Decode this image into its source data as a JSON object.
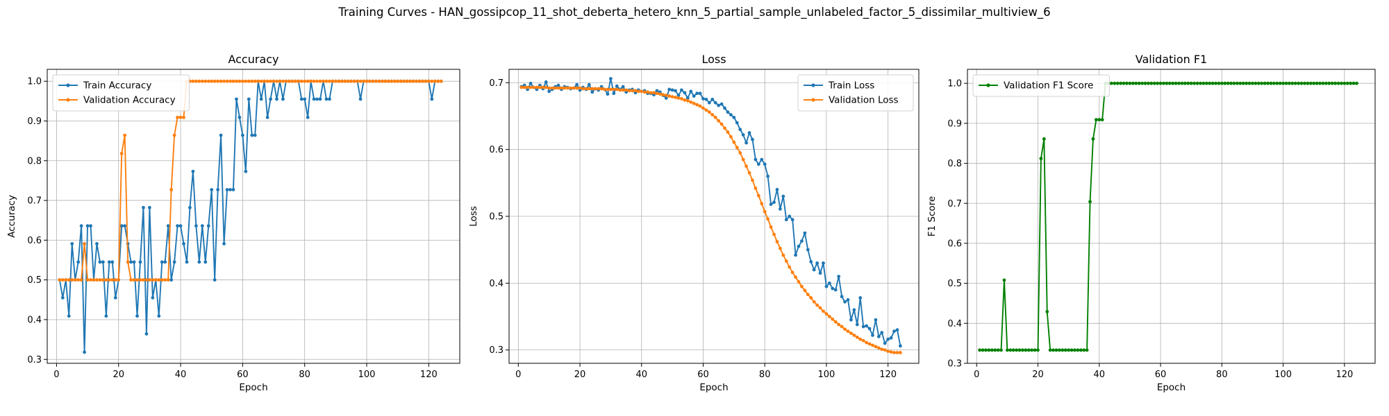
{
  "suptitle": "Training Curves - HAN_gossipcop_11_shot_deberta_hetero_knn_5_partial_sample_unlabeled_factor_5_dissimilar_multiview_6",
  "chart_data": [
    {
      "type": "line",
      "title": "Accuracy",
      "xlabel": "Epoch",
      "ylabel": "Accuracy",
      "xlim": [
        -3,
        130
      ],
      "ylim": [
        0.29,
        1.03
      ],
      "xticks": [
        0,
        20,
        40,
        60,
        80,
        100,
        120
      ],
      "yticks": [
        0.3,
        0.4,
        0.5,
        0.6,
        0.7,
        0.8,
        0.9,
        1.0
      ],
      "grid": true,
      "legend": "top-left",
      "x": [
        1,
        2,
        3,
        4,
        5,
        6,
        7,
        8,
        9,
        10,
        11,
        12,
        13,
        14,
        15,
        16,
        17,
        18,
        19,
        20,
        21,
        22,
        23,
        24,
        25,
        26,
        27,
        28,
        29,
        30,
        31,
        32,
        33,
        34,
        35,
        36,
        37,
        38,
        39,
        40,
        41,
        42,
        43,
        44,
        45,
        46,
        47,
        48,
        49,
        50,
        51,
        52,
        53,
        54,
        55,
        56,
        57,
        58,
        59,
        60,
        61,
        62,
        63,
        64,
        65,
        66,
        67,
        68,
        69,
        70,
        71,
        72,
        73,
        74,
        75,
        76,
        77,
        78,
        79,
        80,
        81,
        82,
        83,
        84,
        85,
        86,
        87,
        88,
        89,
        90,
        91,
        92,
        93,
        94,
        95,
        96,
        97,
        98,
        99,
        100,
        101,
        102,
        103,
        104,
        105,
        106,
        107,
        108,
        109,
        110,
        111,
        112,
        113,
        114,
        115,
        116,
        117,
        118,
        119,
        120,
        121,
        122,
        123,
        124
      ],
      "series": [
        {
          "name": "Train Accuracy",
          "color": "#1f77b4",
          "values": [
            0.5,
            0.455,
            0.5,
            0.409,
            0.591,
            0.5,
            0.545,
            0.636,
            0.318,
            0.636,
            0.636,
            0.5,
            0.591,
            0.545,
            0.545,
            0.409,
            0.545,
            0.545,
            0.455,
            0.5,
            0.636,
            0.636,
            0.591,
            0.545,
            0.545,
            0.409,
            0.545,
            0.682,
            0.364,
            0.682,
            0.455,
            0.5,
            0.409,
            0.545,
            0.545,
            0.636,
            0.5,
            0.545,
            0.636,
            0.636,
            0.591,
            0.545,
            0.682,
            0.773,
            0.636,
            0.545,
            0.636,
            0.545,
            0.636,
            0.727,
            0.5,
            0.727,
            0.864,
            0.591,
            0.727,
            0.727,
            0.727,
            0.955,
            0.909,
            0.864,
            0.773,
            0.955,
            0.864,
            0.864,
            1.0,
            0.955,
            1.0,
            0.909,
            0.955,
            1.0,
            0.955,
            1.0,
            0.955,
            1.0,
            1.0,
            1.0,
            1.0,
            1.0,
            0.955,
            0.955,
            0.909,
            1.0,
            0.955,
            0.955,
            0.955,
            1.0,
            0.955,
            0.955,
            1.0,
            1.0,
            1.0,
            1.0,
            1.0,
            1.0,
            1.0,
            1.0,
            1.0,
            0.955,
            1.0,
            1.0,
            1.0,
            1.0,
            1.0,
            1.0,
            1.0,
            1.0,
            1.0,
            1.0,
            1.0,
            1.0,
            1.0,
            1.0,
            1.0,
            1.0,
            1.0,
            1.0,
            1.0,
            1.0,
            1.0,
            1.0,
            0.955,
            1.0,
            1.0,
            1.0
          ]
        },
        {
          "name": "Validation Accuracy",
          "color": "#ff7f0e",
          "values": [
            0.5,
            0.5,
            0.5,
            0.5,
            0.5,
            0.5,
            0.5,
            0.5,
            0.591,
            0.5,
            0.5,
            0.5,
            0.5,
            0.5,
            0.5,
            0.5,
            0.5,
            0.5,
            0.5,
            0.5,
            0.818,
            0.864,
            0.545,
            0.5,
            0.5,
            0.5,
            0.5,
            0.5,
            0.5,
            0.5,
            0.5,
            0.5,
            0.5,
            0.5,
            0.5,
            0.5,
            0.727,
            0.864,
            0.909,
            0.909,
            0.909,
            1.0,
            1.0,
            1.0,
            1.0,
            1.0,
            1.0,
            1.0,
            1.0,
            1.0,
            1.0,
            1.0,
            1.0,
            1.0,
            1.0,
            1.0,
            1.0,
            1.0,
            1.0,
            1.0,
            1.0,
            1.0,
            1.0,
            1.0,
            1.0,
            1.0,
            1.0,
            1.0,
            1.0,
            1.0,
            1.0,
            1.0,
            1.0,
            1.0,
            1.0,
            1.0,
            1.0,
            1.0,
            1.0,
            1.0,
            1.0,
            1.0,
            1.0,
            1.0,
            1.0,
            1.0,
            1.0,
            1.0,
            1.0,
            1.0,
            1.0,
            1.0,
            1.0,
            1.0,
            1.0,
            1.0,
            1.0,
            1.0,
            1.0,
            1.0,
            1.0,
            1.0,
            1.0,
            1.0,
            1.0,
            1.0,
            1.0,
            1.0,
            1.0,
            1.0,
            1.0,
            1.0,
            1.0,
            1.0,
            1.0,
            1.0,
            1.0,
            1.0,
            1.0,
            1.0,
            1.0,
            1.0,
            1.0,
            1.0
          ]
        }
      ]
    },
    {
      "type": "line",
      "title": "Loss",
      "xlabel": "Epoch",
      "ylabel": "Loss",
      "xlim": [
        -3,
        130
      ],
      "ylim": [
        0.28,
        0.72
      ],
      "xticks": [
        0,
        20,
        40,
        60,
        80,
        100,
        120
      ],
      "yticks": [
        0.3,
        0.4,
        0.5,
        0.6,
        0.7
      ],
      "grid": true,
      "legend": "top-right",
      "x": [
        1,
        2,
        3,
        4,
        5,
        6,
        7,
        8,
        9,
        10,
        11,
        12,
        13,
        14,
        15,
        16,
        17,
        18,
        19,
        20,
        21,
        22,
        23,
        24,
        25,
        26,
        27,
        28,
        29,
        30,
        31,
        32,
        33,
        34,
        35,
        36,
        37,
        38,
        39,
        40,
        41,
        42,
        43,
        44,
        45,
        46,
        47,
        48,
        49,
        50,
        51,
        52,
        53,
        54,
        55,
        56,
        57,
        58,
        59,
        60,
        61,
        62,
        63,
        64,
        65,
        66,
        67,
        68,
        69,
        70,
        71,
        72,
        73,
        74,
        75,
        76,
        77,
        78,
        79,
        80,
        81,
        82,
        83,
        84,
        85,
        86,
        87,
        88,
        89,
        90,
        91,
        92,
        93,
        94,
        95,
        96,
        97,
        98,
        99,
        100,
        101,
        102,
        103,
        104,
        105,
        106,
        107,
        108,
        109,
        110,
        111,
        112,
        113,
        114,
        115,
        116,
        117,
        118,
        119,
        120,
        121,
        122,
        123,
        124
      ],
      "series": [
        {
          "name": "Train Loss",
          "color": "#1f77b4",
          "values": [
            0.694,
            0.696,
            0.69,
            0.699,
            0.693,
            0.69,
            0.696,
            0.691,
            0.701,
            0.687,
            0.69,
            0.694,
            0.696,
            0.69,
            0.694,
            0.693,
            0.691,
            0.692,
            0.697,
            0.689,
            0.693,
            0.69,
            0.697,
            0.686,
            0.691,
            0.689,
            0.694,
            0.69,
            0.683,
            0.706,
            0.684,
            0.695,
            0.69,
            0.694,
            0.686,
            0.689,
            0.69,
            0.685,
            0.689,
            0.687,
            0.688,
            0.684,
            0.684,
            0.682,
            0.688,
            0.686,
            0.681,
            0.677,
            0.69,
            0.689,
            0.688,
            0.681,
            0.689,
            0.685,
            0.677,
            0.687,
            0.68,
            0.684,
            0.684,
            0.676,
            0.675,
            0.67,
            0.675,
            0.67,
            0.666,
            0.668,
            0.662,
            0.656,
            0.652,
            0.648,
            0.64,
            0.63,
            0.622,
            0.61,
            0.625,
            0.615,
            0.585,
            0.578,
            0.585,
            0.578,
            0.56,
            0.518,
            0.521,
            0.54,
            0.511,
            0.53,
            0.495,
            0.5,
            0.495,
            0.442,
            0.455,
            0.463,
            0.475,
            0.45,
            0.432,
            0.42,
            0.43,
            0.415,
            0.43,
            0.395,
            0.4,
            0.392,
            0.39,
            0.41,
            0.38,
            0.372,
            0.375,
            0.345,
            0.36,
            0.338,
            0.378,
            0.335,
            0.336,
            0.332,
            0.322,
            0.345,
            0.32,
            0.326,
            0.31,
            0.316,
            0.318,
            0.328,
            0.33,
            0.306
          ]
        },
        {
          "name": "Validation Loss",
          "color": "#ff7f0e",
          "values": [
            0.693,
            0.693,
            0.693,
            0.693,
            0.693,
            0.693,
            0.693,
            0.693,
            0.693,
            0.692,
            0.692,
            0.692,
            0.692,
            0.692,
            0.692,
            0.692,
            0.692,
            0.692,
            0.692,
            0.692,
            0.691,
            0.691,
            0.691,
            0.691,
            0.691,
            0.691,
            0.691,
            0.69,
            0.69,
            0.69,
            0.69,
            0.69,
            0.689,
            0.689,
            0.689,
            0.688,
            0.688,
            0.688,
            0.687,
            0.687,
            0.686,
            0.686,
            0.685,
            0.685,
            0.684,
            0.683,
            0.682,
            0.681,
            0.68,
            0.679,
            0.678,
            0.677,
            0.676,
            0.674,
            0.673,
            0.671,
            0.669,
            0.667,
            0.665,
            0.662,
            0.659,
            0.656,
            0.652,
            0.648,
            0.643,
            0.638,
            0.632,
            0.626,
            0.619,
            0.611,
            0.603,
            0.595,
            0.585,
            0.575,
            0.565,
            0.554,
            0.542,
            0.531,
            0.519,
            0.507,
            0.496,
            0.484,
            0.473,
            0.462,
            0.452,
            0.442,
            0.433,
            0.424,
            0.416,
            0.409,
            0.402,
            0.395,
            0.389,
            0.383,
            0.378,
            0.372,
            0.367,
            0.363,
            0.358,
            0.354,
            0.35,
            0.346,
            0.342,
            0.338,
            0.335,
            0.331,
            0.328,
            0.325,
            0.322,
            0.319,
            0.316,
            0.314,
            0.311,
            0.309,
            0.307,
            0.305,
            0.303,
            0.301,
            0.3,
            0.298,
            0.297,
            0.296,
            0.296,
            0.296
          ]
        }
      ]
    },
    {
      "type": "line",
      "title": "Validation F1",
      "xlabel": "Epoch",
      "ylabel": "F1 Score",
      "xlim": [
        -3,
        130
      ],
      "ylim": [
        0.3,
        1.035
      ],
      "xticks": [
        0,
        20,
        40,
        60,
        80,
        100,
        120
      ],
      "yticks": [
        0.3,
        0.4,
        0.5,
        0.6,
        0.7,
        0.8,
        0.9,
        1.0
      ],
      "grid": true,
      "legend": "top-left",
      "x": [
        1,
        2,
        3,
        4,
        5,
        6,
        7,
        8,
        9,
        10,
        11,
        12,
        13,
        14,
        15,
        16,
        17,
        18,
        19,
        20,
        21,
        22,
        23,
        24,
        25,
        26,
        27,
        28,
        29,
        30,
        31,
        32,
        33,
        34,
        35,
        36,
        37,
        38,
        39,
        40,
        41,
        42,
        43,
        44,
        45,
        46,
        47,
        48,
        49,
        50,
        51,
        52,
        53,
        54,
        55,
        56,
        57,
        58,
        59,
        60,
        61,
        62,
        63,
        64,
        65,
        66,
        67,
        68,
        69,
        70,
        71,
        72,
        73,
        74,
        75,
        76,
        77,
        78,
        79,
        80,
        81,
        82,
        83,
        84,
        85,
        86,
        87,
        88,
        89,
        90,
        91,
        92,
        93,
        94,
        95,
        96,
        97,
        98,
        99,
        100,
        101,
        102,
        103,
        104,
        105,
        106,
        107,
        108,
        109,
        110,
        111,
        112,
        113,
        114,
        115,
        116,
        117,
        118,
        119,
        120,
        121,
        122,
        123,
        124
      ],
      "series": [
        {
          "name": "Validation F1 Score",
          "color": "#008000",
          "values": [
            0.333,
            0.333,
            0.333,
            0.333,
            0.333,
            0.333,
            0.333,
            0.333,
            0.508,
            0.333,
            0.333,
            0.333,
            0.333,
            0.333,
            0.333,
            0.333,
            0.333,
            0.333,
            0.333,
            0.333,
            0.812,
            0.861,
            0.429,
            0.333,
            0.333,
            0.333,
            0.333,
            0.333,
            0.333,
            0.333,
            0.333,
            0.333,
            0.333,
            0.333,
            0.333,
            0.333,
            0.704,
            0.861,
            0.909,
            0.909,
            0.909,
            1.0,
            1.0,
            1.0,
            1.0,
            1.0,
            1.0,
            1.0,
            1.0,
            1.0,
            1.0,
            1.0,
            1.0,
            1.0,
            1.0,
            1.0,
            1.0,
            1.0,
            1.0,
            1.0,
            1.0,
            1.0,
            1.0,
            1.0,
            1.0,
            1.0,
            1.0,
            1.0,
            1.0,
            1.0,
            1.0,
            1.0,
            1.0,
            1.0,
            1.0,
            1.0,
            1.0,
            1.0,
            1.0,
            1.0,
            1.0,
            1.0,
            1.0,
            1.0,
            1.0,
            1.0,
            1.0,
            1.0,
            1.0,
            1.0,
            1.0,
            1.0,
            1.0,
            1.0,
            1.0,
            1.0,
            1.0,
            1.0,
            1.0,
            1.0,
            1.0,
            1.0,
            1.0,
            1.0,
            1.0,
            1.0,
            1.0,
            1.0,
            1.0,
            1.0,
            1.0,
            1.0,
            1.0,
            1.0,
            1.0,
            1.0,
            1.0,
            1.0,
            1.0,
            1.0,
            1.0,
            1.0,
            1.0,
            1.0
          ]
        }
      ]
    }
  ]
}
